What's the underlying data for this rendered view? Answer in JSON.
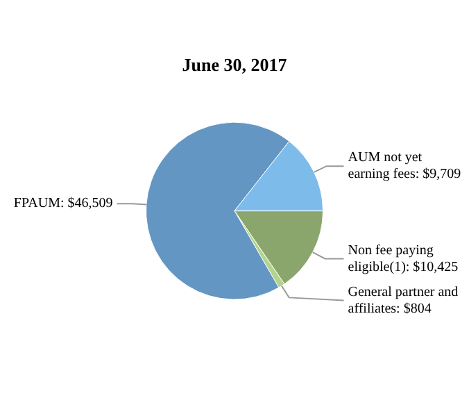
{
  "chart_data": {
    "type": "pie",
    "title": "June 30, 2017",
    "categories": [
      "Non fee paying eligible(1)",
      "General partner and affiliates",
      "FPAUM",
      "AUM not yet earning fees"
    ],
    "values": [
      10425,
      804,
      46509,
      9709
    ],
    "value_labels": [
      "$10,425",
      "$804",
      "$46,509",
      "$9,709"
    ],
    "colors": [
      "#8aa66c",
      "#b3d48c",
      "#6396c2",
      "#7dbbea"
    ],
    "legend": false
  }
}
